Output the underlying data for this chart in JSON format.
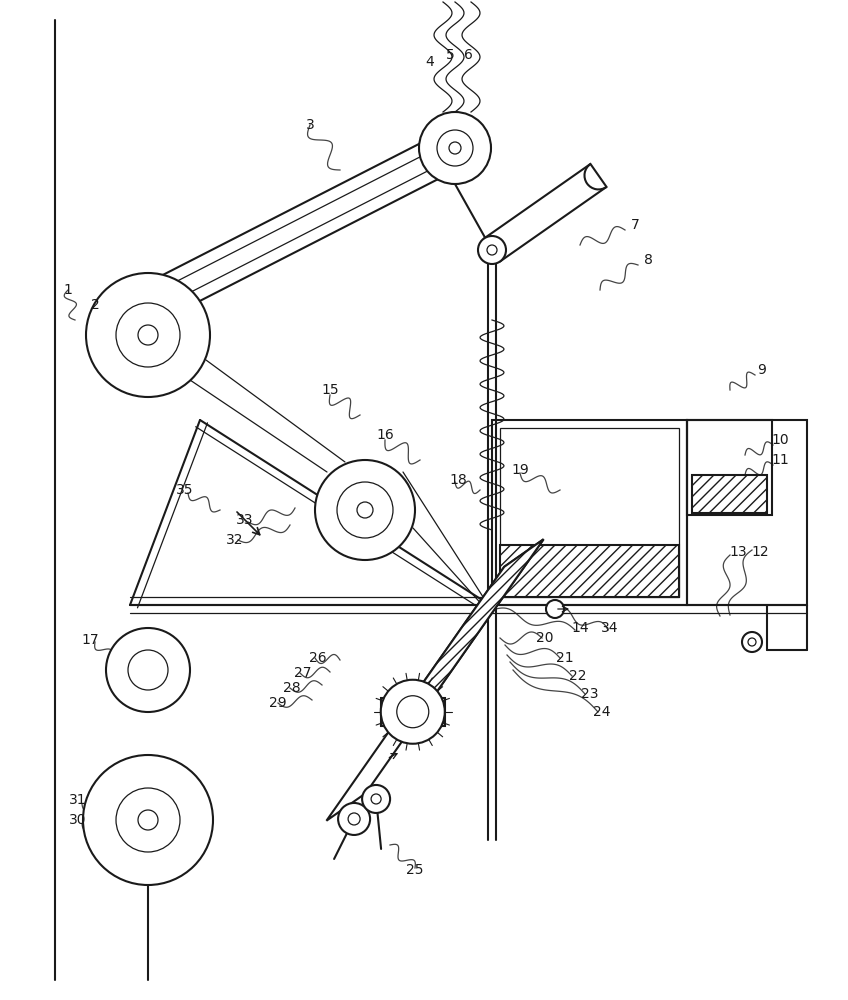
{
  "bg_color": "#ffffff",
  "lc": "#1a1a1a",
  "lw": 1.5,
  "tlw": 0.9,
  "figsize": [
    8.48,
    10.0
  ],
  "dpi": 100
}
